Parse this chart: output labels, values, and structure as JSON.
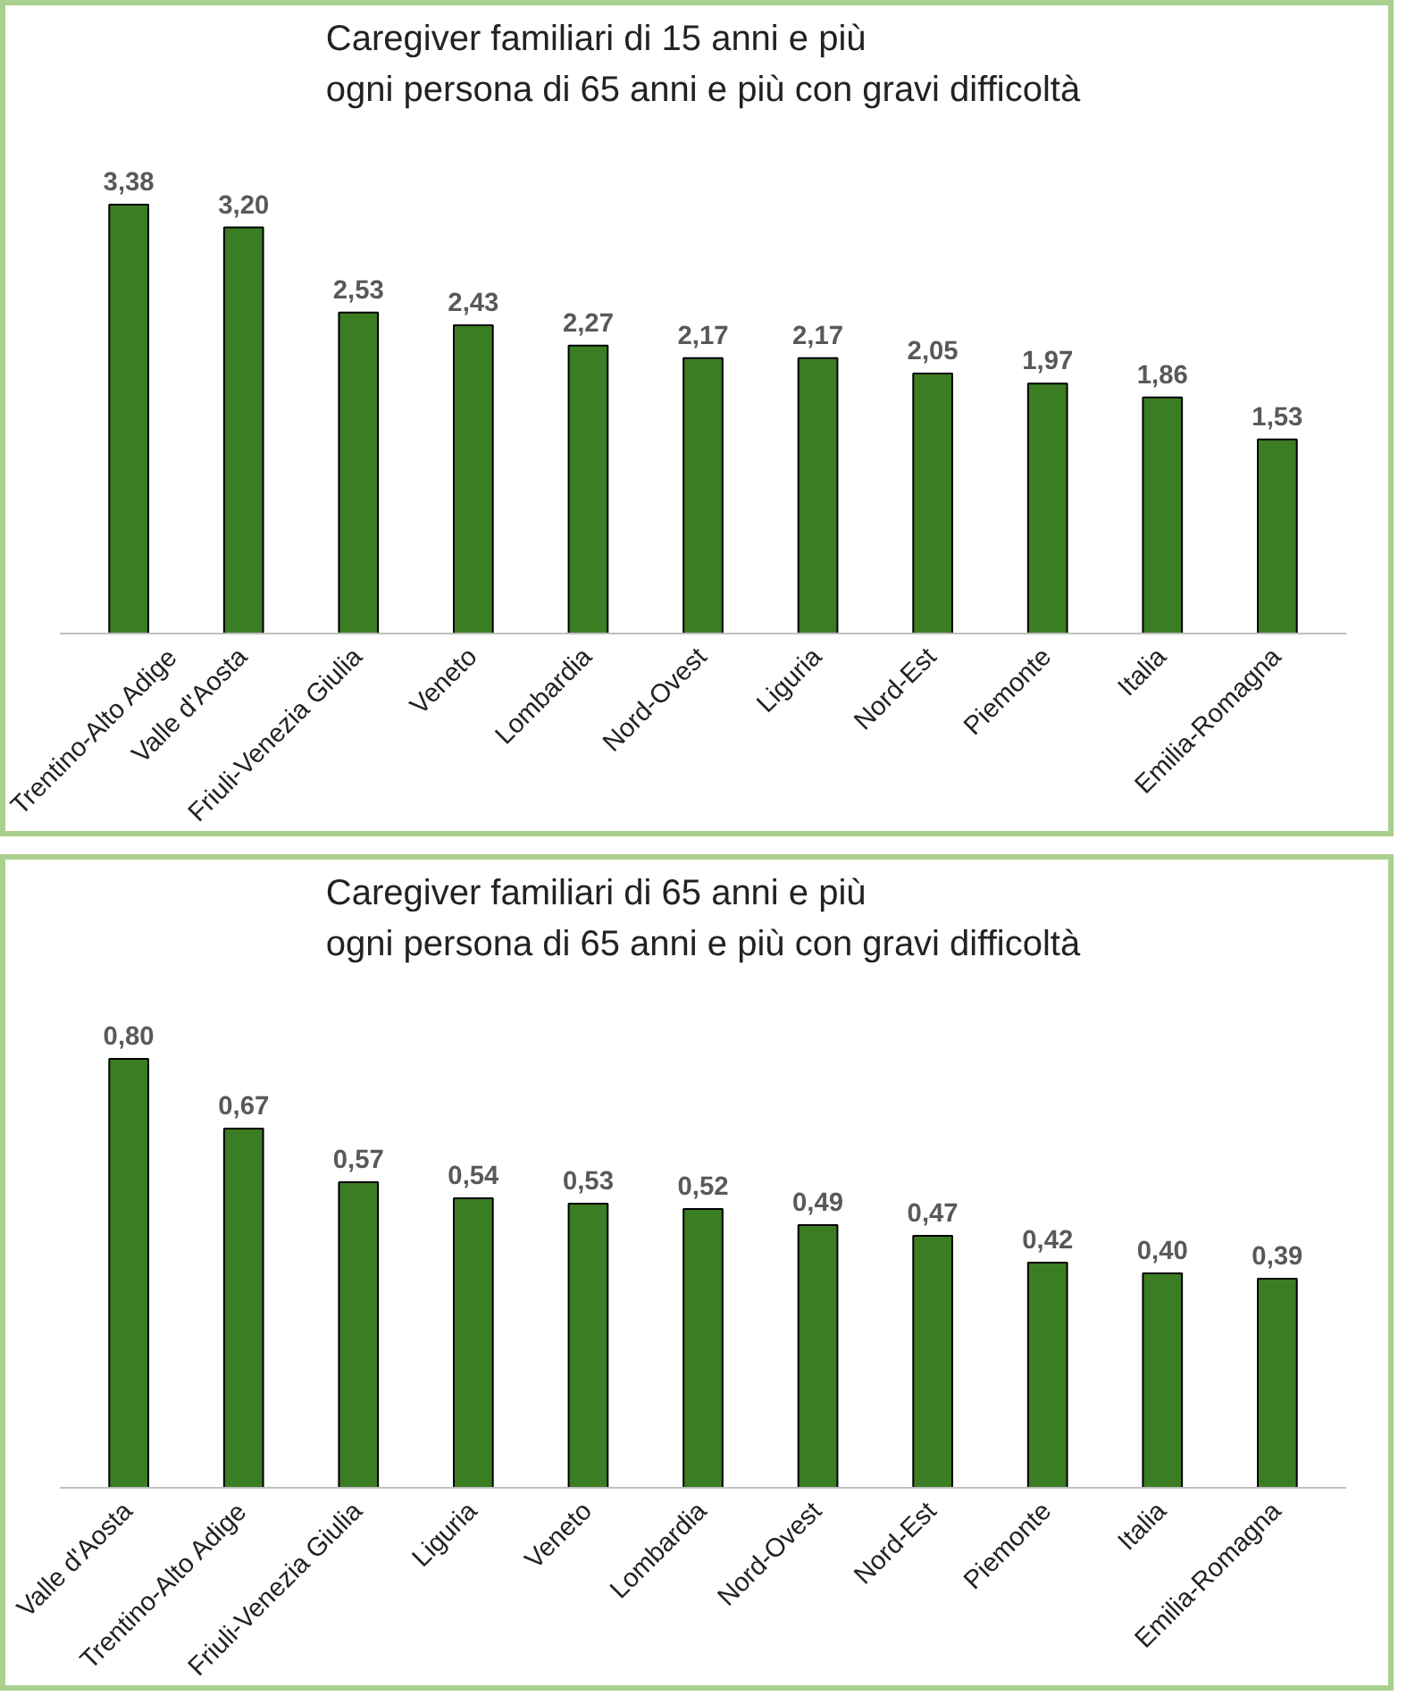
{
  "chart_data": [
    {
      "type": "bar",
      "title": "Caregiver familiari di 15 anni e più\nogni persona di 65 anni e più con gravi difficoltà",
      "categories": [
        "Trentino-Alto Adige",
        "Valle d'Aosta",
        "Friuli-Venezia Giulia",
        "Veneto",
        "Lombardia",
        "Nord-Ovest",
        "Liguria",
        "Nord-Est",
        "Piemonte",
        "Italia",
        "Emilia-Romagna"
      ],
      "values": [
        3.38,
        3.2,
        2.53,
        2.43,
        2.27,
        2.17,
        2.17,
        2.05,
        1.97,
        1.86,
        1.53
      ],
      "value_labels": [
        "3,38",
        "3,20",
        "2,53",
        "2,43",
        "2,27",
        "2,17",
        "2,17",
        "2,05",
        "1,97",
        "1,86",
        "1,53"
      ],
      "color": "#3b7d23",
      "tick_labels": "x"
    },
    {
      "type": "bar",
      "title": "Caregiver familiari di 65 anni e più\nogni persona di 65 anni e più con gravi difficoltà",
      "categories": [
        "Valle d'Aosta",
        "Trentino-Alto Adige",
        "Friuli-Venezia Giulia",
        "Liguria",
        "Veneto",
        "Lombardia",
        "Nord-Ovest",
        "Nord-Est",
        "Piemonte",
        "Italia",
        "Emilia-Romagna"
      ],
      "values": [
        0.8,
        0.67,
        0.57,
        0.54,
        0.53,
        0.52,
        0.49,
        0.47,
        0.42,
        0.4,
        0.39
      ],
      "value_labels": [
        "0,80",
        "0,67",
        "0,57",
        "0,54",
        "0,53",
        "0,52",
        "0,49",
        "0,47",
        "0,42",
        "0,40",
        "0,39"
      ],
      "color": "#3b7d23",
      "tick_labels": "x"
    }
  ]
}
